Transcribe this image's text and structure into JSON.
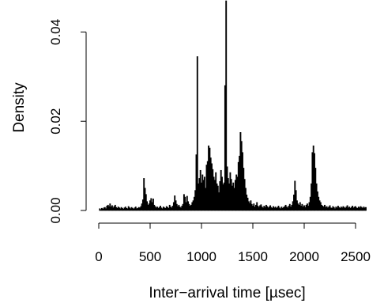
{
  "chart_data": {
    "type": "histogram",
    "title": "",
    "xlabel": "Inter−arrival time [µsec]",
    "ylabel": "Density",
    "xlim": [
      0,
      2600
    ],
    "ylim": [
      0,
      0.047
    ],
    "x_ticks": [
      0,
      500,
      1000,
      1500,
      2000,
      2500
    ],
    "y_ticks": [
      "0.00",
      "0.02",
      "0.04"
    ],
    "y_tick_values": [
      0.0,
      0.02,
      0.04
    ],
    "grid": false,
    "bin_width": 10,
    "bins": [
      [
        10,
        0.0004
      ],
      [
        20,
        0.0002
      ],
      [
        30,
        0.0005
      ],
      [
        40,
        0.0003
      ],
      [
        50,
        0.0006
      ],
      [
        60,
        0.0007
      ],
      [
        70,
        0.0004
      ],
      [
        80,
        0.001
      ],
      [
        90,
        0.0012
      ],
      [
        100,
        0.0009
      ],
      [
        110,
        0.0015
      ],
      [
        120,
        0.0008
      ],
      [
        130,
        0.0011
      ],
      [
        140,
        0.0006
      ],
      [
        150,
        0.0009
      ],
      [
        160,
        0.0012
      ],
      [
        170,
        0.0007
      ],
      [
        180,
        0.0005
      ],
      [
        190,
        0.0008
      ],
      [
        200,
        0.0006
      ],
      [
        210,
        0.0004
      ],
      [
        220,
        0.0007
      ],
      [
        230,
        0.0005
      ],
      [
        240,
        0.0003
      ],
      [
        250,
        0.0006
      ],
      [
        260,
        0.0008
      ],
      [
        270,
        0.0005
      ],
      [
        280,
        0.0004
      ],
      [
        290,
        0.0009
      ],
      [
        300,
        0.0006
      ],
      [
        310,
        0.0004
      ],
      [
        320,
        0.0007
      ],
      [
        330,
        0.0005
      ],
      [
        340,
        0.0003
      ],
      [
        350,
        0.0006
      ],
      [
        360,
        0.0008
      ],
      [
        370,
        0.0004
      ],
      [
        380,
        0.0005
      ],
      [
        390,
        0.0007
      ],
      [
        400,
        0.0006
      ],
      [
        410,
        0.0009
      ],
      [
        420,
        0.0015
      ],
      [
        430,
        0.0024
      ],
      [
        440,
        0.0072
      ],
      [
        450,
        0.005
      ],
      [
        460,
        0.0036
      ],
      [
        470,
        0.002
      ],
      [
        480,
        0.0012
      ],
      [
        490,
        0.0015
      ],
      [
        500,
        0.0022
      ],
      [
        510,
        0.0027
      ],
      [
        520,
        0.0018
      ],
      [
        530,
        0.0026
      ],
      [
        540,
        0.0012
      ],
      [
        550,
        0.0009
      ],
      [
        560,
        0.0006
      ],
      [
        570,
        0.0008
      ],
      [
        580,
        0.0005
      ],
      [
        590,
        0.0007
      ],
      [
        600,
        0.001
      ],
      [
        610,
        0.0006
      ],
      [
        620,
        0.0004
      ],
      [
        630,
        0.0008
      ],
      [
        640,
        0.0006
      ],
      [
        650,
        0.0005
      ],
      [
        660,
        0.0009
      ],
      [
        670,
        0.0007
      ],
      [
        680,
        0.0005
      ],
      [
        690,
        0.0012
      ],
      [
        700,
        0.0008
      ],
      [
        710,
        0.0006
      ],
      [
        720,
        0.001
      ],
      [
        730,
        0.0018
      ],
      [
        740,
        0.0033
      ],
      [
        750,
        0.0022
      ],
      [
        760,
        0.0014
      ],
      [
        770,
        0.0009
      ],
      [
        780,
        0.0012
      ],
      [
        790,
        0.0008
      ],
      [
        800,
        0.0006
      ],
      [
        810,
        0.001
      ],
      [
        820,
        0.0014
      ],
      [
        830,
        0.0036
      ],
      [
        840,
        0.003
      ],
      [
        850,
        0.0018
      ],
      [
        860,
        0.0032
      ],
      [
        870,
        0.002
      ],
      [
        880,
        0.0014
      ],
      [
        890,
        0.001
      ],
      [
        900,
        0.0012
      ],
      [
        910,
        0.0018
      ],
      [
        920,
        0.0022
      ],
      [
        930,
        0.003
      ],
      [
        940,
        0.0045
      ],
      [
        950,
        0.0125
      ],
      [
        960,
        0.0345
      ],
      [
        970,
        0.006
      ],
      [
        980,
        0.0072
      ],
      [
        990,
        0.009
      ],
      [
        1000,
        0.0062
      ],
      [
        1010,
        0.008
      ],
      [
        1020,
        0.0068
      ],
      [
        1030,
        0.0075
      ],
      [
        1040,
        0.005
      ],
      [
        1050,
        0.0102
      ],
      [
        1060,
        0.011
      ],
      [
        1070,
        0.0145
      ],
      [
        1080,
        0.014
      ],
      [
        1090,
        0.0118
      ],
      [
        1100,
        0.0105
      ],
      [
        1110,
        0.0092
      ],
      [
        1120,
        0.0075
      ],
      [
        1130,
        0.0068
      ],
      [
        1140,
        0.0085
      ],
      [
        1150,
        0.006
      ],
      [
        1160,
        0.0055
      ],
      [
        1170,
        0.004
      ],
      [
        1180,
        0.0065
      ],
      [
        1190,
        0.009
      ],
      [
        1200,
        0.0075
      ],
      [
        1210,
        0.0058
      ],
      [
        1220,
        0.0062
      ],
      [
        1230,
        0.028
      ],
      [
        1240,
        0.047
      ],
      [
        1250,
        0.0098
      ],
      [
        1260,
        0.0072
      ],
      [
        1270,
        0.006
      ],
      [
        1280,
        0.0085
      ],
      [
        1290,
        0.007
      ],
      [
        1300,
        0.0055
      ],
      [
        1310,
        0.0062
      ],
      [
        1320,
        0.005
      ],
      [
        1330,
        0.0068
      ],
      [
        1340,
        0.008
      ],
      [
        1350,
        0.0075
      ],
      [
        1360,
        0.0108
      ],
      [
        1370,
        0.0122
      ],
      [
        1380,
        0.0175
      ],
      [
        1390,
        0.0155
      ],
      [
        1400,
        0.013
      ],
      [
        1410,
        0.0095
      ],
      [
        1420,
        0.007
      ],
      [
        1430,
        0.005
      ],
      [
        1440,
        0.0035
      ],
      [
        1450,
        0.0028
      ],
      [
        1460,
        0.002
      ],
      [
        1470,
        0.0016
      ],
      [
        1480,
        0.0022
      ],
      [
        1490,
        0.0014
      ],
      [
        1500,
        0.001
      ],
      [
        1510,
        0.0015
      ],
      [
        1520,
        0.0008
      ],
      [
        1530,
        0.0012
      ],
      [
        1540,
        0.0018
      ],
      [
        1550,
        0.001
      ],
      [
        1560,
        0.0007
      ],
      [
        1570,
        0.0011
      ],
      [
        1580,
        0.0013
      ],
      [
        1590,
        0.0008
      ],
      [
        1600,
        0.0006
      ],
      [
        1610,
        0.001
      ],
      [
        1620,
        0.0007
      ],
      [
        1630,
        0.0012
      ],
      [
        1640,
        0.0009
      ],
      [
        1650,
        0.0006
      ],
      [
        1660,
        0.0008
      ],
      [
        1670,
        0.0011
      ],
      [
        1680,
        0.0007
      ],
      [
        1690,
        0.0005
      ],
      [
        1700,
        0.0009
      ],
      [
        1710,
        0.0006
      ],
      [
        1720,
        0.0008
      ],
      [
        1730,
        0.0005
      ],
      [
        1740,
        0.0007
      ],
      [
        1750,
        0.001
      ],
      [
        1760,
        0.0006
      ],
      [
        1770,
        0.0004
      ],
      [
        1780,
        0.0008
      ],
      [
        1790,
        0.0005
      ],
      [
        1800,
        0.0007
      ],
      [
        1810,
        0.0009
      ],
      [
        1820,
        0.0012
      ],
      [
        1830,
        0.0008
      ],
      [
        1840,
        0.0006
      ],
      [
        1850,
        0.001
      ],
      [
        1860,
        0.0014
      ],
      [
        1870,
        0.0008
      ],
      [
        1880,
        0.0012
      ],
      [
        1890,
        0.002
      ],
      [
        1900,
        0.0035
      ],
      [
        1910,
        0.0066
      ],
      [
        1920,
        0.0045
      ],
      [
        1930,
        0.0022
      ],
      [
        1940,
        0.0015
      ],
      [
        1950,
        0.0012
      ],
      [
        1960,
        0.0018
      ],
      [
        1970,
        0.001
      ],
      [
        1980,
        0.0014
      ],
      [
        1990,
        0.0008
      ],
      [
        2000,
        0.0011
      ],
      [
        2010,
        0.0007
      ],
      [
        2020,
        0.0012
      ],
      [
        2030,
        0.0015
      ],
      [
        2040,
        0.001
      ],
      [
        2050,
        0.0018
      ],
      [
        2060,
        0.003
      ],
      [
        2070,
        0.006
      ],
      [
        2080,
        0.013
      ],
      [
        2090,
        0.0145
      ],
      [
        2100,
        0.0128
      ],
      [
        2110,
        0.0095
      ],
      [
        2120,
        0.006
      ],
      [
        2130,
        0.0042
      ],
      [
        2140,
        0.003
      ],
      [
        2150,
        0.0022
      ],
      [
        2160,
        0.0018
      ],
      [
        2170,
        0.0012
      ],
      [
        2180,
        0.001
      ],
      [
        2190,
        0.0008
      ],
      [
        2200,
        0.0012
      ],
      [
        2210,
        0.0007
      ],
      [
        2220,
        0.0009
      ],
      [
        2230,
        0.0006
      ],
      [
        2240,
        0.0008
      ],
      [
        2250,
        0.0011
      ],
      [
        2260,
        0.0006
      ],
      [
        2270,
        0.0005
      ],
      [
        2280,
        0.0009
      ],
      [
        2290,
        0.0007
      ],
      [
        2300,
        0.0004
      ],
      [
        2310,
        0.0008
      ],
      [
        2320,
        0.0006
      ],
      [
        2330,
        0.001
      ],
      [
        2340,
        0.0007
      ],
      [
        2350,
        0.0005
      ],
      [
        2360,
        0.0008
      ],
      [
        2370,
        0.0006
      ],
      [
        2380,
        0.0009
      ],
      [
        2390,
        0.0007
      ],
      [
        2400,
        0.0005
      ],
      [
        2410,
        0.0008
      ],
      [
        2420,
        0.0011
      ],
      [
        2430,
        0.0006
      ],
      [
        2440,
        0.0008
      ],
      [
        2450,
        0.0005
      ],
      [
        2460,
        0.0007
      ],
      [
        2470,
        0.001
      ],
      [
        2480,
        0.0006
      ],
      [
        2490,
        0.0008
      ],
      [
        2500,
        0.0009
      ],
      [
        2510,
        0.0006
      ],
      [
        2520,
        0.0005
      ],
      [
        2530,
        0.0008
      ],
      [
        2540,
        0.0006
      ],
      [
        2550,
        0.0009
      ],
      [
        2560,
        0.0007
      ],
      [
        2570,
        0.0005
      ],
      [
        2580,
        0.0008
      ],
      [
        2590,
        0.0006
      ],
      [
        2600,
        0.0007
      ]
    ]
  }
}
